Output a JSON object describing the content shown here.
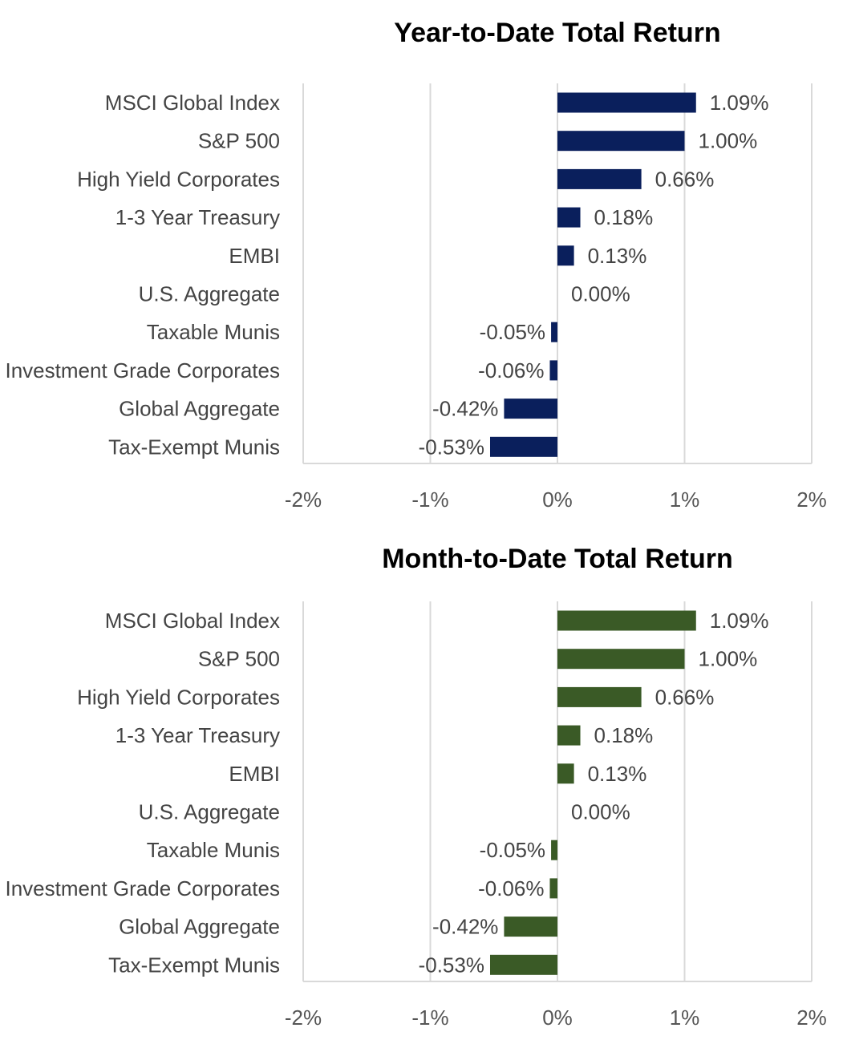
{
  "chart_data": [
    {
      "type": "bar",
      "orientation": "horizontal",
      "title": "Year-to-Date Total Return",
      "categories": [
        "MSCI Global Index",
        "S&P 500",
        "High Yield Corporates",
        "1-3 Year Treasury",
        "EMBI",
        "U.S. Aggregate",
        "Taxable Munis",
        "Investment Grade Corporates",
        "Global Aggregate",
        "Tax-Exempt Munis"
      ],
      "values": [
        1.09,
        1.0,
        0.66,
        0.18,
        0.13,
        0.0,
        -0.05,
        -0.06,
        -0.42,
        -0.53
      ],
      "value_labels": [
        "1.09%",
        "1.00%",
        "0.66%",
        "0.18%",
        "0.13%",
        "0.00%",
        "-0.05%",
        "-0.06%",
        "-0.42%",
        "-0.53%"
      ],
      "xlim": [
        -2,
        2
      ],
      "xticks": [
        "-2%",
        "-1%",
        "0%",
        "1%",
        "2%"
      ],
      "xlabel": "",
      "ylabel": "",
      "grid": true,
      "color": "#0a1f5c"
    },
    {
      "type": "bar",
      "orientation": "horizontal",
      "title": "Month-to-Date Total Return",
      "categories": [
        "MSCI Global Index",
        "S&P 500",
        "High Yield Corporates",
        "1-3 Year Treasury",
        "EMBI",
        "U.S. Aggregate",
        "Taxable Munis",
        "Investment Grade Corporates",
        "Global Aggregate",
        "Tax-Exempt Munis"
      ],
      "values": [
        1.09,
        1.0,
        0.66,
        0.18,
        0.13,
        0.0,
        -0.05,
        -0.06,
        -0.42,
        -0.53
      ],
      "value_labels": [
        "1.09%",
        "1.00%",
        "0.66%",
        "0.18%",
        "0.13%",
        "0.00%",
        "-0.05%",
        "-0.06%",
        "-0.42%",
        "-0.53%"
      ],
      "xlim": [
        -2,
        2
      ],
      "xticks": [
        "-2%",
        "-1%",
        "0%",
        "1%",
        "2%"
      ],
      "xlabel": "",
      "ylabel": "",
      "grid": true,
      "color": "#3a5a26"
    }
  ]
}
